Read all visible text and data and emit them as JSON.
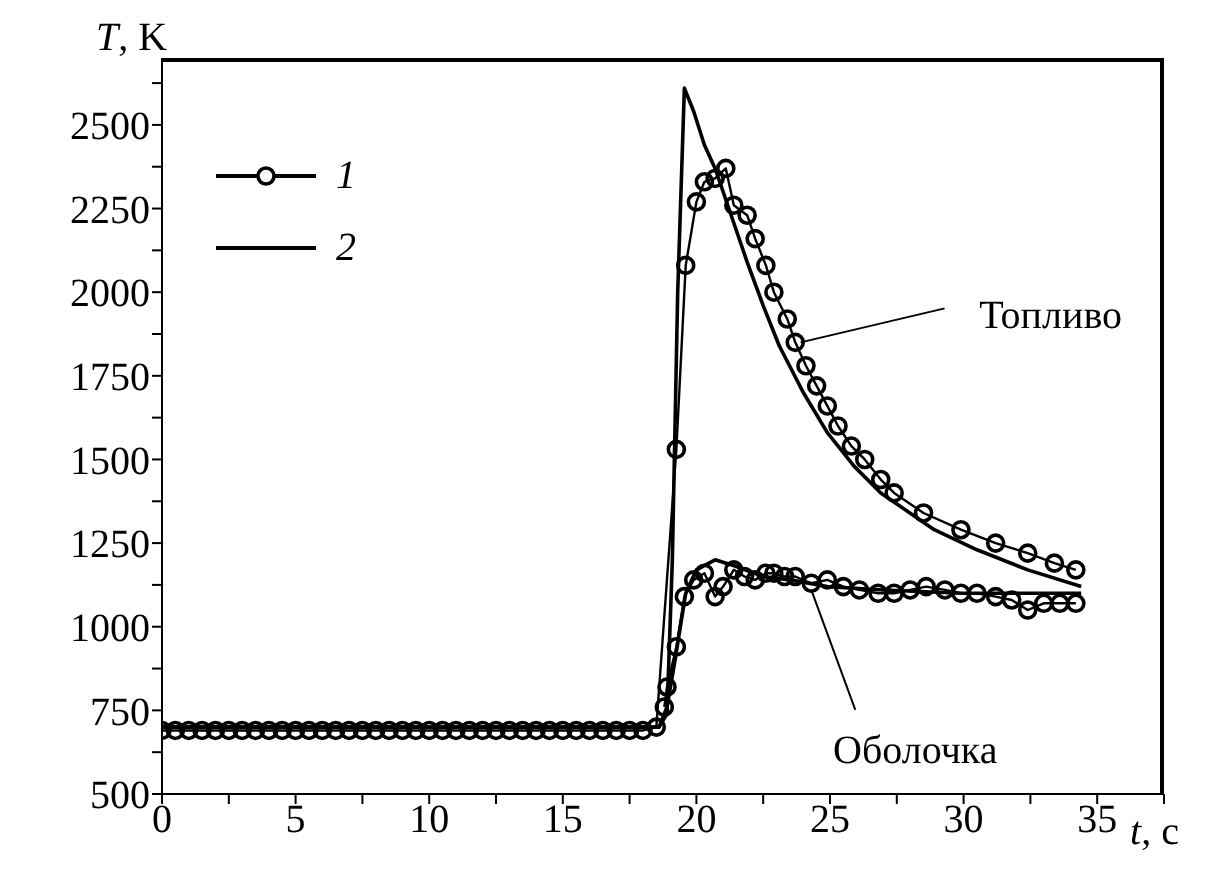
{
  "chart_data": {
    "type": "line",
    "xlabel": "t, c",
    "ylabel": "T, K",
    "xlim": [
      0,
      37.5
    ],
    "ylim": [
      500,
      2700
    ],
    "xticks": [
      0,
      {
        "value": 2.5,
        "label": null
      },
      5,
      {
        "value": 7.5,
        "label": null
      },
      10,
      {
        "value": 12.5,
        "label": null
      },
      15,
      {
        "value": 17.5,
        "label": null
      },
      20,
      {
        "value": 22.5,
        "label": null
      },
      25,
      {
        "value": 27.5,
        "label": null
      },
      30,
      {
        "value": 32.5,
        "label": null
      },
      35,
      {
        "value": 37.5,
        "label": null
      }
    ],
    "yticks": [
      500,
      {
        "value": 625,
        "label": null
      },
      750,
      {
        "value": 875,
        "label": null
      },
      1000,
      {
        "value": 1125,
        "label": null
      },
      1250,
      {
        "value": 1375,
        "label": null
      },
      1500,
      {
        "value": 1625,
        "label": null
      },
      1750,
      {
        "value": 1875,
        "label": null
      },
      2000,
      {
        "value": 2125,
        "label": null
      },
      2250,
      {
        "value": 2375,
        "label": null
      },
      2500,
      {
        "value": 2625,
        "label": null
      }
    ],
    "grid": false,
    "legend": "top left",
    "series": [
      {
        "name": "1",
        "color": "#000000",
        "marker": "circle",
        "x": [
          0,
          0.5,
          1,
          1.5,
          2,
          2.5,
          3,
          3.5,
          4,
          4.5,
          5,
          5.5,
          6,
          6.5,
          7,
          7.5,
          8,
          8.5,
          9,
          9.5,
          10,
          10.5,
          11,
          11.5,
          12,
          12.5,
          13,
          13.5,
          14,
          14.5,
          15,
          15.5,
          16,
          16.5,
          17,
          17.5,
          18,
          18.5,
          19.25,
          19.6,
          20.0,
          20.3,
          20.7,
          21.1,
          21.4,
          21.9,
          22.2,
          22.6,
          22.9,
          23.4,
          23.7,
          24.1,
          24.5,
          24.9,
          25.3,
          25.8,
          26.3,
          26.9,
          27.4,
          28.5,
          29.9,
          31.2,
          32.4,
          33.4,
          34.2
        ],
        "values": [
          690,
          690,
          690,
          690,
          690,
          690,
          690,
          690,
          690,
          690,
          690,
          690,
          690,
          690,
          690,
          690,
          690,
          690,
          690,
          690,
          690,
          690,
          690,
          690,
          690,
          690,
          690,
          690,
          690,
          690,
          690,
          690,
          690,
          690,
          690,
          690,
          690,
          700,
          1530,
          2080,
          2270,
          2330,
          2340,
          2370,
          2260,
          2230,
          2160,
          2080,
          2000,
          1920,
          1850,
          1780,
          1720,
          1660,
          1600,
          1540,
          1500,
          1440,
          1400,
          1340,
          1290,
          1250,
          1220,
          1190,
          1170
        ]
      },
      {
        "color": "#000000",
        "marker": "circle",
        "x": [
          18.8,
          18.9,
          19.25,
          19.55,
          19.9,
          20.3,
          20.7,
          21.0,
          21.4,
          21.8,
          22.2,
          22.6,
          22.9,
          23.3,
          23.7,
          24.3,
          24.9,
          25.5,
          26.1,
          26.8,
          27.4,
          28.0,
          28.6,
          29.3,
          29.9,
          30.5,
          31.2,
          31.8,
          32.4,
          33.0,
          33.6,
          34.2
        ],
        "values": [
          760,
          820,
          940,
          1090,
          1140,
          1160,
          1090,
          1120,
          1170,
          1150,
          1140,
          1160,
          1160,
          1150,
          1150,
          1130,
          1140,
          1120,
          1110,
          1100,
          1100,
          1110,
          1120,
          1110,
          1100,
          1100,
          1090,
          1080,
          1050,
          1070,
          1070,
          1070
        ]
      },
      {
        "name": "2",
        "color": "#000000",
        "marker": "none",
        "x": [
          0,
          18.6,
          18.9,
          19.1,
          19.3,
          19.55,
          19.9,
          20.3,
          20.7,
          21.3,
          21.9,
          22.5,
          23.1,
          24,
          24.9,
          25.9,
          26.9,
          28.9,
          30.5,
          32.4,
          34.4
        ],
        "values": [
          700,
          700,
          740,
          1200,
          2000,
          2610,
          2540,
          2440,
          2370,
          2230,
          2090,
          1960,
          1840,
          1700,
          1580,
          1480,
          1400,
          1290,
          1230,
          1170,
          1120
        ]
      },
      {
        "color": "#000000",
        "marker": "none",
        "x": [
          0,
          18.6,
          18.9,
          19.2,
          19.6,
          20.0,
          20.7,
          21.5,
          22.5,
          23.5,
          24.9,
          27,
          29.9,
          32,
          34.4
        ],
        "values": [
          700,
          700,
          760,
          900,
          1100,
          1170,
          1200,
          1180,
          1150,
          1140,
          1120,
          1110,
          1100,
          1100,
          1100
        ]
      }
    ],
    "annotations": [
      {
        "text": "Топливо",
        "x": 23.9,
        "y": 1850
      },
      {
        "text": "Оболочка",
        "x": 24.3,
        "y": 1110
      }
    ]
  }
}
